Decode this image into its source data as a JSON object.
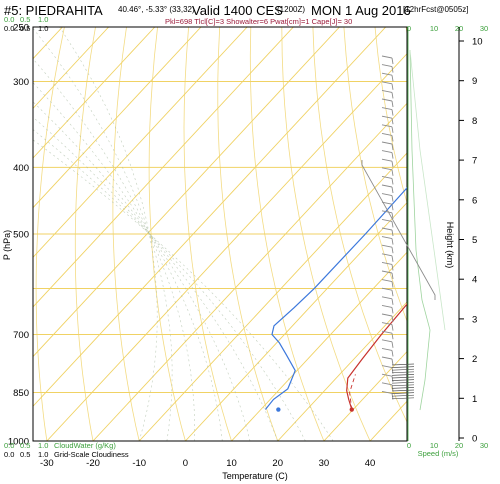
{
  "header": {
    "site": "#5: PIEDRAHITA",
    "coords": "40.46°, -5.33° (33,32)",
    "valid": "Valid 1400 CES",
    "zulu": "(1200Z)",
    "date": "MON 1 Aug 2016",
    "forecast": "[12hrFcst@0505z]",
    "indices": "Pkl=698 Tlcl[C]=3 Showalter=6 Pwat[cm]=1 Cape[J]= 30"
  },
  "colors": {
    "isotherm": "#f0d264",
    "isobar": "#f0d264",
    "temperature": "#c8322d",
    "dewpoint": "#3c78dc",
    "cloud_axis": "#3ca03c",
    "wind": "#8c8c8c"
  },
  "chart_data": {
    "type": "line",
    "xlabel": "Temperature (C)",
    "ylabel": "P (hPa)",
    "right_ylabel": "Height (km)",
    "x_ticks": [
      "-30",
      "-20",
      "-10",
      "0",
      "10",
      "20",
      "30",
      "40"
    ],
    "xlim": [
      -33,
      48
    ],
    "p_ticks": [
      "250",
      "300",
      "400",
      "500",
      "700",
      "850",
      "1000"
    ],
    "height_ticks": [
      "0",
      "1",
      "2",
      "3",
      "4",
      "5",
      "6",
      "7",
      "8",
      "9",
      "10"
    ],
    "top_cloud_ticks": [
      "0.0",
      "0.5",
      "1.0"
    ],
    "top_cloud_ticks_2": [
      "0.0",
      "0.5",
      "1.0"
    ],
    "bottom_cloud_ticks": [
      "0.0",
      "0.5",
      "1.0"
    ],
    "bottom_cloud_ticks_2": [
      "0.0",
      "0.5",
      "1.0"
    ],
    "bottom_cloud_label_1": "CloudWater (g/Kg)",
    "bottom_cloud_label_2": "Grid-Scale Cloudiness",
    "speed_ticks": [
      "0",
      "10",
      "20",
      "30"
    ],
    "speed_label": "Speed (m/s)",
    "series": [
      {
        "name": "Temperature",
        "x": [
          29.7,
          27,
          24.8,
          22.5,
          21.8,
          21,
          20.5,
          20.2,
          19.2,
          16.8,
          14.1,
          10.9,
          7.6,
          5.3,
          2.5,
          0.3,
          -1.5
        ],
        "p": [
          900,
          870,
          845,
          810,
          760,
          700,
          640,
          600,
          550,
          500,
          450,
          400,
          350,
          320,
          290,
          265,
          250
        ]
      },
      {
        "name": "Dewpoint",
        "x": [
          11,
          10.7,
          11.7,
          9.6,
          4.6,
          0.6,
          -2.7,
          -4,
          -3.3,
          -2.8,
          -2.7,
          -3.1,
          -3,
          -3,
          -3.7,
          -4.8,
          -5.7
        ],
        "p": [
          900,
          870,
          840,
          790,
          750,
          720,
          700,
          680,
          640,
          600,
          500,
          400,
          350,
          300,
          280,
          260,
          250
        ]
      },
      {
        "name": "Parcel",
        "x": [
          29.7,
          25.8,
          23.4
        ],
        "p": [
          900,
          850,
          800
        ]
      }
    ],
    "surface_dewpoint_marker": {
      "x": 13.8,
      "p": 900
    }
  }
}
